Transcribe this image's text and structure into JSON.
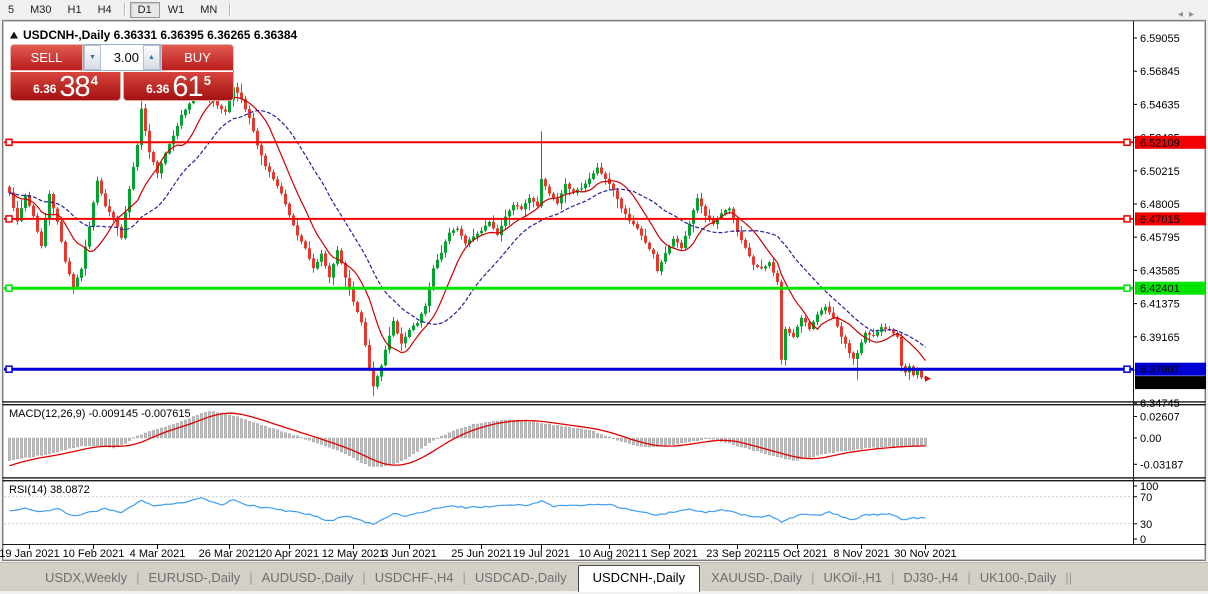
{
  "toolbar": {
    "timeframes": [
      "5",
      "M30",
      "H1",
      "H4",
      "D1",
      "W1",
      "MN"
    ],
    "active_timeframe": "D1",
    "separators_after": [
      "H4",
      "MN"
    ]
  },
  "window": {
    "title": "USDCNH-,Daily  6.36331 6.36395 6.36265 6.36384"
  },
  "trade_panel": {
    "sell_label": "SELL",
    "buy_label": "BUY",
    "volume": "3.00",
    "sell_price_small": "6.36",
    "sell_price_big": "38",
    "sell_price_sup": "4",
    "buy_price_small": "6.36",
    "buy_price_big": "61",
    "buy_price_sup": "5"
  },
  "tabs": {
    "items": [
      "USDX,Weekly",
      "EURUSD-,Daily",
      "AUDUSD-,Daily",
      "USDCHF-,H4",
      "USDCAD-,Daily",
      "USDCNH-,Daily",
      "XAUUSD-,Daily",
      "UKOil-,H1",
      "DJ30-,H4",
      "UK100-,Daily"
    ],
    "active": "USDCNH-,Daily",
    "scroll_left": "◂",
    "scroll_right": "▸"
  },
  "chart_data": {
    "type": "candlestick",
    "symbol": "USDCNH-",
    "timeframe": "Daily",
    "current_bar": {
      "open": 6.36331,
      "high": 6.36395,
      "low": 6.36265,
      "close": 6.36384
    },
    "price_axis": {
      "ticks": [
        6.59055,
        6.56845,
        6.54635,
        6.52425,
        6.50215,
        6.48005,
        6.45795,
        6.43585,
        6.41375,
        6.39165,
        6.36955,
        6.34745
      ],
      "range": [
        6.3489,
        6.5972
      ]
    },
    "x_axis": {
      "labels": [
        {
          "text": "19 Jan 2021",
          "i": 5
        },
        {
          "text": "10 Feb 2021",
          "i": 21
        },
        {
          "text": "4 Mar 2021",
          "i": 37
        },
        {
          "text": "26 Mar 2021",
          "i": 55
        },
        {
          "text": "20 Apr 2021",
          "i": 70
        },
        {
          "text": "12 May 2021",
          "i": 86
        },
        {
          "text": "3 Jun 2021",
          "i": 100
        },
        {
          "text": "25 Jun 2021",
          "i": 118
        },
        {
          "text": "19 Jul 2021",
          "i": 133
        },
        {
          "text": "10 Aug 2021",
          "i": 150
        },
        {
          "text": "1 Sep 2021",
          "i": 165
        },
        {
          "text": "23 Sep 2021",
          "i": 182
        },
        {
          "text": "15 Oct 2021",
          "i": 197
        },
        {
          "text": "8 Nov 2021",
          "i": 213
        },
        {
          "text": "30 Nov 2021",
          "i": 229
        }
      ]
    },
    "h_lines": [
      {
        "price": 6.52109,
        "label": "6.52109",
        "color": "#F40000",
        "text_color": "#ffffff",
        "width": 2
      },
      {
        "price": 6.47015,
        "label": "6.47015",
        "color": "#F40000",
        "text_color": "#ffffff",
        "width": 2
      },
      {
        "price": 6.42401,
        "label": "6.42401",
        "color": "#00E400",
        "text_color": "#000000",
        "width": 3
      },
      {
        "price": 6.37007,
        "label": "6.37007",
        "color": "#0000D6",
        "text_color": "#ffffff",
        "width": 3
      }
    ],
    "current_price": {
      "value": 6.36384,
      "label": "6.36384",
      "bg": "#000000",
      "text_color": "#ffffff"
    },
    "candles": {
      "count": 230,
      "up_color": "#00A32E",
      "down_color": "#E8372C",
      "close_anchors": [
        [
          0,
          6.488
        ],
        [
          2,
          6.468
        ],
        [
          4,
          6.486
        ],
        [
          6,
          6.472
        ],
        [
          8,
          6.452
        ],
        [
          10,
          6.487
        ],
        [
          12,
          6.468
        ],
        [
          14,
          6.442
        ],
        [
          16,
          6.425
        ],
        [
          18,
          6.437
        ],
        [
          20,
          6.465
        ],
        [
          22,
          6.496
        ],
        [
          24,
          6.479
        ],
        [
          26,
          6.471
        ],
        [
          28,
          6.458
        ],
        [
          30,
          6.49
        ],
        [
          32,
          6.519
        ],
        [
          33,
          6.543
        ],
        [
          35,
          6.514
        ],
        [
          37,
          6.501
        ],
        [
          39,
          6.514
        ],
        [
          41,
          6.526
        ],
        [
          43,
          6.539
        ],
        [
          46,
          6.551
        ],
        [
          48,
          6.558
        ],
        [
          50,
          6.554
        ],
        [
          52,
          6.546
        ],
        [
          54,
          6.541
        ],
        [
          56,
          6.558
        ],
        [
          58,
          6.55
        ],
        [
          60,
          6.537
        ],
        [
          62,
          6.519
        ],
        [
          64,
          6.505
        ],
        [
          66,
          6.497
        ],
        [
          68,
          6.487
        ],
        [
          70,
          6.472
        ],
        [
          72,
          6.459
        ],
        [
          74,
          6.45
        ],
        [
          76,
          6.437
        ],
        [
          78,
          6.447
        ],
        [
          80,
          6.431
        ],
        [
          82,
          6.449
        ],
        [
          84,
          6.431
        ],
        [
          86,
          6.415
        ],
        [
          88,
          6.401
        ],
        [
          89,
          6.386
        ],
        [
          90,
          6.37
        ],
        [
          91,
          6.359
        ],
        [
          93,
          6.373
        ],
        [
          95,
          6.392
        ],
        [
          96,
          6.402
        ],
        [
          98,
          6.387
        ],
        [
          100,
          6.396
        ],
        [
          102,
          6.401
        ],
        [
          104,
          6.412
        ],
        [
          106,
          6.437
        ],
        [
          108,
          6.448
        ],
        [
          110,
          6.461
        ],
        [
          112,
          6.464
        ],
        [
          114,
          6.454
        ],
        [
          116,
          6.458
        ],
        [
          118,
          6.462
        ],
        [
          120,
          6.468
        ],
        [
          122,
          6.459
        ],
        [
          124,
          6.472
        ],
        [
          126,
          6.479
        ],
        [
          128,
          6.477
        ],
        [
          130,
          6.484
        ],
        [
          132,
          6.479
        ],
        [
          133,
          6.497
        ],
        [
          135,
          6.487
        ],
        [
          137,
          6.481
        ],
        [
          139,
          6.494
        ],
        [
          141,
          6.487
        ],
        [
          143,
          6.491
        ],
        [
          145,
          6.497
        ],
        [
          147,
          6.504
        ],
        [
          149,
          6.497
        ],
        [
          151,
          6.489
        ],
        [
          153,
          6.477
        ],
        [
          155,
          6.469
        ],
        [
          157,
          6.464
        ],
        [
          159,
          6.454
        ],
        [
          161,
          6.447
        ],
        [
          162,
          6.435
        ],
        [
          164,
          6.447
        ],
        [
          166,
          6.457
        ],
        [
          168,
          6.451
        ],
        [
          170,
          6.467
        ],
        [
          172,
          6.484
        ],
        [
          174,
          6.472
        ],
        [
          176,
          6.467
        ],
        [
          178,
          6.474
        ],
        [
          180,
          6.477
        ],
        [
          182,
          6.461
        ],
        [
          184,
          6.451
        ],
        [
          186,
          6.439
        ],
        [
          188,
          6.437
        ],
        [
          190,
          6.441
        ],
        [
          192,
          6.428
        ],
        [
          193,
          6.376
        ],
        [
          194,
          6.397
        ],
        [
          196,
          6.392
        ],
        [
          198,
          6.404
        ],
        [
          200,
          6.397
        ],
        [
          202,
          6.407
        ],
        [
          204,
          6.411
        ],
        [
          206,
          6.404
        ],
        [
          208,
          6.392
        ],
        [
          210,
          6.381
        ],
        [
          211,
          6.377
        ],
        [
          212,
          6.381
        ],
        [
          214,
          6.394
        ],
        [
          216,
          6.392
        ],
        [
          218,
          6.398
        ],
        [
          220,
          6.396
        ],
        [
          222,
          6.392
        ],
        [
          223,
          6.372
        ],
        [
          224,
          6.368
        ],
        [
          225,
          6.372
        ],
        [
          226,
          6.366
        ],
        [
          227,
          6.369
        ],
        [
          228,
          6.364
        ],
        [
          229,
          6.3638
        ]
      ],
      "wick_overrides": [
        [
          33,
          "high",
          6.556
        ],
        [
          56,
          "high",
          6.576
        ],
        [
          91,
          "low",
          6.352
        ],
        [
          133,
          "high",
          6.5285
        ],
        [
          212,
          "low",
          6.363
        ]
      ]
    },
    "moving_averages": [
      {
        "name": "fast-ma",
        "period": 10,
        "color": "#CC0000",
        "style": "solid"
      },
      {
        "name": "slow-ma",
        "period": 24,
        "color": "#2020A0",
        "style": "dashed"
      }
    ],
    "macd": {
      "label": "MACD(12,26,9) -0.009145 -0.007615",
      "ticks": [
        {
          "v": 0.02607,
          "text": "0.02607"
        },
        {
          "v": 0.0,
          "text": "0.00"
        },
        {
          "v": -0.03187,
          "text": "-0.03187"
        }
      ],
      "bar_color": "#BFBFBF",
      "line_color": "#E00000",
      "signal_period": 9,
      "anchors": [
        [
          -15,
          -0.052
        ],
        [
          0,
          -0.027
        ],
        [
          5,
          -0.023
        ],
        [
          10,
          -0.019
        ],
        [
          14,
          -0.014
        ],
        [
          18,
          -0.01
        ],
        [
          22,
          -0.009
        ],
        [
          26,
          -0.012
        ],
        [
          29,
          -0.006
        ],
        [
          31,
          0.0
        ],
        [
          34,
          0.006
        ],
        [
          38,
          0.012
        ],
        [
          42,
          0.018
        ],
        [
          45,
          0.024
        ],
        [
          48,
          0.03
        ],
        [
          50,
          0.032
        ],
        [
          52,
          0.031
        ],
        [
          55,
          0.028
        ],
        [
          58,
          0.024
        ],
        [
          61,
          0.019
        ],
        [
          64,
          0.014
        ],
        [
          68,
          0.008
        ],
        [
          72,
          0.002
        ],
        [
          75,
          -0.003
        ],
        [
          78,
          -0.008
        ],
        [
          81,
          -0.013
        ],
        [
          84,
          -0.019
        ],
        [
          87,
          -0.027
        ],
        [
          90,
          -0.034
        ],
        [
          93,
          -0.035
        ],
        [
          96,
          -0.031
        ],
        [
          99,
          -0.026
        ],
        [
          102,
          -0.016
        ],
        [
          105,
          -0.006
        ],
        [
          107,
          0.0
        ],
        [
          110,
          0.006
        ],
        [
          113,
          0.012
        ],
        [
          116,
          0.016
        ],
        [
          119,
          0.019
        ],
        [
          122,
          0.021
        ],
        [
          125,
          0.022
        ],
        [
          128,
          0.021
        ],
        [
          131,
          0.019
        ],
        [
          134,
          0.017
        ],
        [
          137,
          0.015
        ],
        [
          140,
          0.013
        ],
        [
          143,
          0.011
        ],
        [
          146,
          0.008
        ],
        [
          148,
          0.004
        ],
        [
          150,
          0.001
        ],
        [
          152,
          -0.003
        ],
        [
          155,
          -0.007
        ],
        [
          158,
          -0.01
        ],
        [
          161,
          -0.011
        ],
        [
          164,
          -0.009
        ],
        [
          167,
          -0.007
        ],
        [
          170,
          -0.005
        ],
        [
          173,
          -0.002
        ],
        [
          175,
          -0.001
        ],
        [
          178,
          -0.004
        ],
        [
          181,
          -0.008
        ],
        [
          184,
          -0.012
        ],
        [
          187,
          -0.016
        ],
        [
          190,
          -0.02
        ],
        [
          193,
          -0.024
        ],
        [
          196,
          -0.027
        ],
        [
          199,
          -0.025
        ],
        [
          202,
          -0.021
        ],
        [
          205,
          -0.018
        ],
        [
          209,
          -0.015
        ],
        [
          213,
          -0.013
        ],
        [
          217,
          -0.011
        ],
        [
          221,
          -0.01
        ],
        [
          225,
          -0.0095
        ],
        [
          229,
          -0.009145
        ]
      ]
    },
    "rsi": {
      "label": "RSI(14) 38.0872",
      "value": 38.0872,
      "ticks": [
        {
          "v": 100,
          "text": "100"
        },
        {
          "v": 70,
          "text": "70"
        },
        {
          "v": 30,
          "text": "30"
        },
        {
          "v": 0,
          "text": "0"
        }
      ],
      "levels": [
        70,
        30
      ],
      "color": "#3D9DF2",
      "anchors": [
        [
          -5,
          50
        ],
        [
          0,
          50
        ],
        [
          4,
          53
        ],
        [
          8,
          48
        ],
        [
          12,
          52
        ],
        [
          16,
          42
        ],
        [
          20,
          47
        ],
        [
          24,
          52
        ],
        [
          28,
          47
        ],
        [
          33,
          65
        ],
        [
          36,
          57
        ],
        [
          40,
          60
        ],
        [
          44,
          62
        ],
        [
          48,
          68
        ],
        [
          50,
          64
        ],
        [
          53,
          58
        ],
        [
          56,
          66
        ],
        [
          58,
          60
        ],
        [
          62,
          55
        ],
        [
          66,
          52
        ],
        [
          70,
          48
        ],
        [
          74,
          45
        ],
        [
          77,
          40
        ],
        [
          80,
          34
        ],
        [
          84,
          42
        ],
        [
          87,
          36
        ],
        [
          91,
          29
        ],
        [
          94,
          38
        ],
        [
          96,
          45
        ],
        [
          99,
          41
        ],
        [
          102,
          46
        ],
        [
          106,
          52
        ],
        [
          110,
          57
        ],
        [
          114,
          54
        ],
        [
          118,
          55
        ],
        [
          122,
          56
        ],
        [
          126,
          58
        ],
        [
          130,
          57
        ],
        [
          133,
          64
        ],
        [
          136,
          56
        ],
        [
          139,
          58
        ],
        [
          143,
          57
        ],
        [
          147,
          60
        ],
        [
          150,
          58
        ],
        [
          154,
          52
        ],
        [
          158,
          48
        ],
        [
          162,
          42
        ],
        [
          166,
          48
        ],
        [
          170,
          52
        ],
        [
          174,
          47
        ],
        [
          178,
          51
        ],
        [
          182,
          45
        ],
        [
          186,
          40
        ],
        [
          190,
          42
        ],
        [
          193,
          33
        ],
        [
          196,
          40
        ],
        [
          199,
          45
        ],
        [
          202,
          42
        ],
        [
          205,
          47
        ],
        [
          208,
          41
        ],
        [
          211,
          36
        ],
        [
          214,
          44
        ],
        [
          217,
          43
        ],
        [
          220,
          46
        ],
        [
          223,
          36
        ],
        [
          226,
          39
        ],
        [
          229,
          38.0872
        ]
      ]
    }
  }
}
